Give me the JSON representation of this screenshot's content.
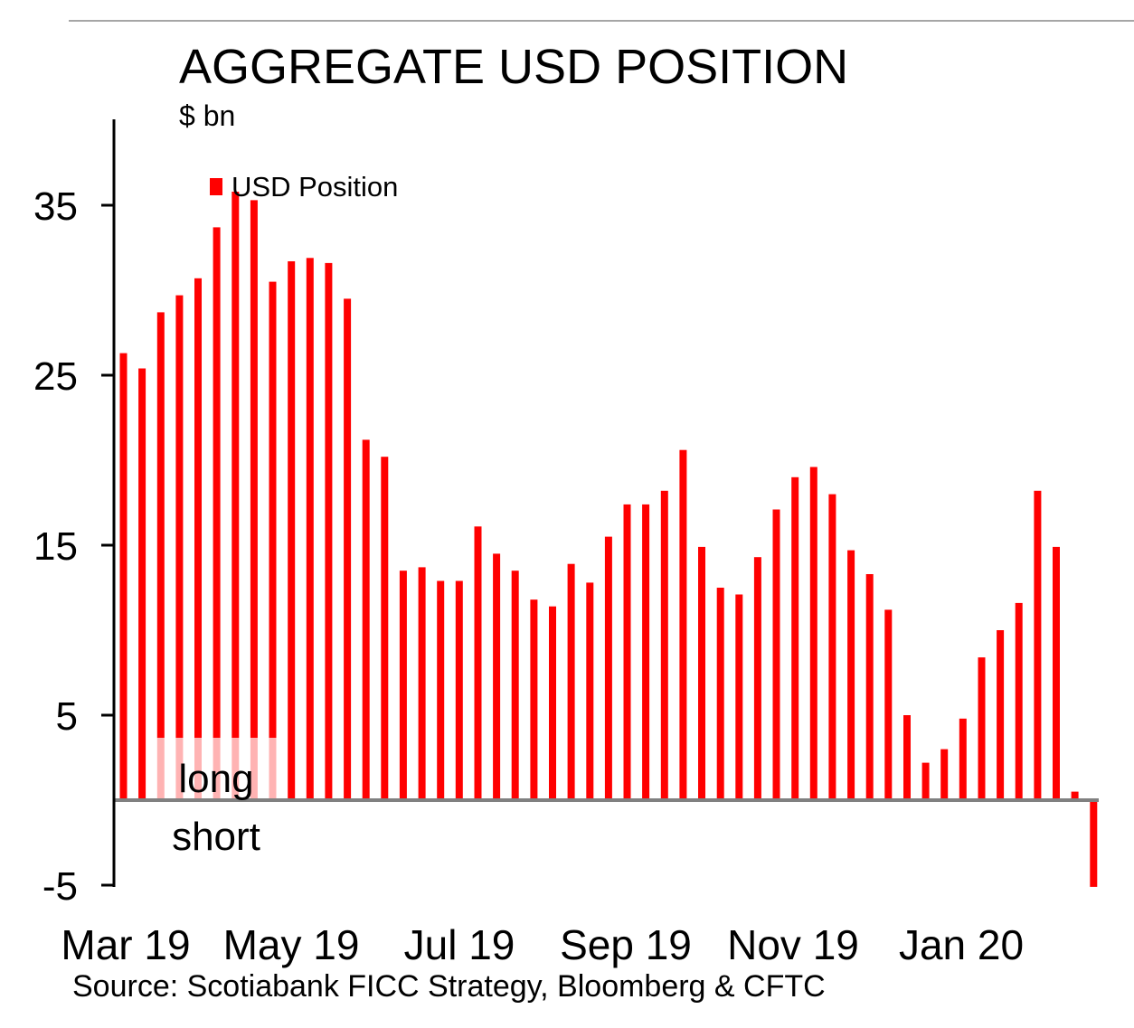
{
  "chart_data": {
    "type": "bar",
    "title": "AGGREGATE USD POSITION",
    "unit": "$ bn",
    "source": "Source: Scotiabank FICC  Strategy, Bloomberg & CFTC",
    "ylim": [
      -5,
      40
    ],
    "yticks": [
      35,
      25,
      15,
      5,
      -5
    ],
    "xticks": [
      "Mar 19",
      "May 19",
      "Jul 19",
      "Sep 19",
      "Nov 19",
      "Jan 20"
    ],
    "zone_labels": {
      "above": "long",
      "below": "short"
    },
    "legend": {
      "position": "top-left"
    },
    "series": [
      {
        "name": "USD Position",
        "color": "#ff0000",
        "values": [
          26.3,
          25.4,
          28.7,
          29.7,
          30.7,
          33.7,
          35.8,
          35.3,
          30.5,
          31.7,
          31.9,
          31.6,
          29.5,
          21.2,
          20.2,
          13.5,
          13.7,
          12.9,
          12.9,
          16.1,
          14.5,
          13.5,
          11.8,
          11.4,
          13.9,
          12.8,
          15.5,
          17.4,
          17.4,
          18.2,
          20.6,
          14.9,
          12.5,
          12.1,
          14.3,
          17.1,
          19.0,
          19.6,
          18.0,
          14.7,
          13.3,
          11.2,
          5.0,
          2.2,
          3.0,
          4.8,
          8.4,
          10.0,
          11.6,
          18.2,
          14.9,
          0.5,
          -5.1
        ]
      }
    ]
  }
}
